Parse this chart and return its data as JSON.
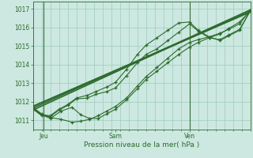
{
  "bg_color": "#cce8e0",
  "grid_color": "#9ecbbe",
  "line_color": "#2d6b2d",
  "xlabel": "Pression niveau de la mer( hPa )",
  "ylim": [
    1010.5,
    1017.4
  ],
  "yticks": [
    1011,
    1012,
    1013,
    1014,
    1015,
    1016,
    1017
  ],
  "xtick_labels": [
    "Jeu",
    "Sam",
    "Ven"
  ],
  "xtick_pos": [
    0.05,
    0.38,
    0.72
  ],
  "vline_pos": [
    0.05,
    0.72
  ],
  "minor_xticks": [
    0.0,
    0.04,
    0.08,
    0.12,
    0.16,
    0.2,
    0.24,
    0.28,
    0.32,
    0.36,
    0.4,
    0.44,
    0.48,
    0.52,
    0.56,
    0.6,
    0.64,
    0.68,
    0.72,
    0.76,
    0.8,
    0.84,
    0.88,
    0.92,
    0.96,
    1.0
  ],
  "lines": [
    {
      "x": [
        0.0,
        1.0
      ],
      "y": [
        1011.55,
        1016.95
      ],
      "style": "straight",
      "lw": 1.2
    },
    {
      "x": [
        0.0,
        1.0
      ],
      "y": [
        1011.65,
        1016.95
      ],
      "style": "straight",
      "lw": 1.2
    },
    {
      "x": [
        0.0,
        1.0
      ],
      "y": [
        1011.75,
        1016.85
      ],
      "style": "straight",
      "lw": 1.5
    },
    {
      "x": [
        0.0,
        0.04,
        0.08,
        0.12,
        0.16,
        0.2,
        0.25,
        0.29,
        0.34,
        0.38,
        0.43,
        0.48,
        0.52,
        0.57,
        0.62,
        0.67,
        0.72,
        0.76,
        0.81,
        0.86,
        0.9,
        0.95,
        1.0
      ],
      "y": [
        1011.6,
        1011.25,
        1011.2,
        1011.55,
        1011.8,
        1012.15,
        1012.2,
        1012.4,
        1012.55,
        1012.75,
        1013.4,
        1014.1,
        1014.55,
        1014.85,
        1015.3,
        1015.75,
        1016.2,
        1015.8,
        1015.45,
        1015.35,
        1015.6,
        1015.9,
        1016.9
      ],
      "style": "marker",
      "lw": 0.8
    },
    {
      "x": [
        0.0,
        0.04,
        0.08,
        0.12,
        0.16,
        0.2,
        0.25,
        0.29,
        0.34,
        0.38,
        0.43,
        0.48,
        0.52,
        0.57,
        0.62,
        0.67,
        0.72,
        0.76,
        0.81,
        0.86,
        0.9,
        0.95,
        1.0
      ],
      "y": [
        1011.65,
        1011.3,
        1011.25,
        1011.6,
        1011.85,
        1012.2,
        1012.35,
        1012.55,
        1012.8,
        1013.05,
        1013.75,
        1014.55,
        1015.05,
        1015.45,
        1015.85,
        1016.25,
        1016.3,
        1015.85,
        1015.5,
        1015.3,
        1015.55,
        1015.85,
        1016.95
      ],
      "style": "marker",
      "lw": 0.8
    },
    {
      "x": [
        0.0,
        0.04,
        0.08,
        0.13,
        0.18,
        0.22,
        0.26,
        0.3,
        0.34,
        0.38,
        0.43,
        0.48,
        0.52,
        0.57,
        0.62,
        0.67,
        0.72,
        0.76,
        0.81,
        0.86,
        0.9,
        0.95,
        1.0
      ],
      "y": [
        1011.7,
        1011.35,
        1011.15,
        1011.05,
        1010.9,
        1010.95,
        1011.05,
        1011.25,
        1011.5,
        1011.75,
        1012.2,
        1012.85,
        1013.35,
        1013.85,
        1014.35,
        1014.85,
        1015.2,
        1015.35,
        1015.5,
        1015.7,
        1015.9,
        1016.2,
        1016.95
      ],
      "style": "marker",
      "lw": 0.8
    },
    {
      "x": [
        0.0,
        0.04,
        0.08,
        0.13,
        0.18,
        0.22,
        0.26,
        0.3,
        0.34,
        0.38,
        0.43,
        0.48,
        0.52,
        0.57,
        0.62,
        0.67,
        0.72,
        0.76,
        0.81,
        0.86,
        0.9,
        0.95,
        1.0
      ],
      "y": [
        1011.65,
        1011.3,
        1011.1,
        1011.5,
        1011.7,
        1011.3,
        1011.1,
        1011.1,
        1011.35,
        1011.6,
        1012.1,
        1012.7,
        1013.2,
        1013.65,
        1014.1,
        1014.55,
        1014.95,
        1015.2,
        1015.45,
        1015.65,
        1015.95,
        1016.3,
        1016.9
      ],
      "style": "marker",
      "lw": 0.8
    }
  ]
}
